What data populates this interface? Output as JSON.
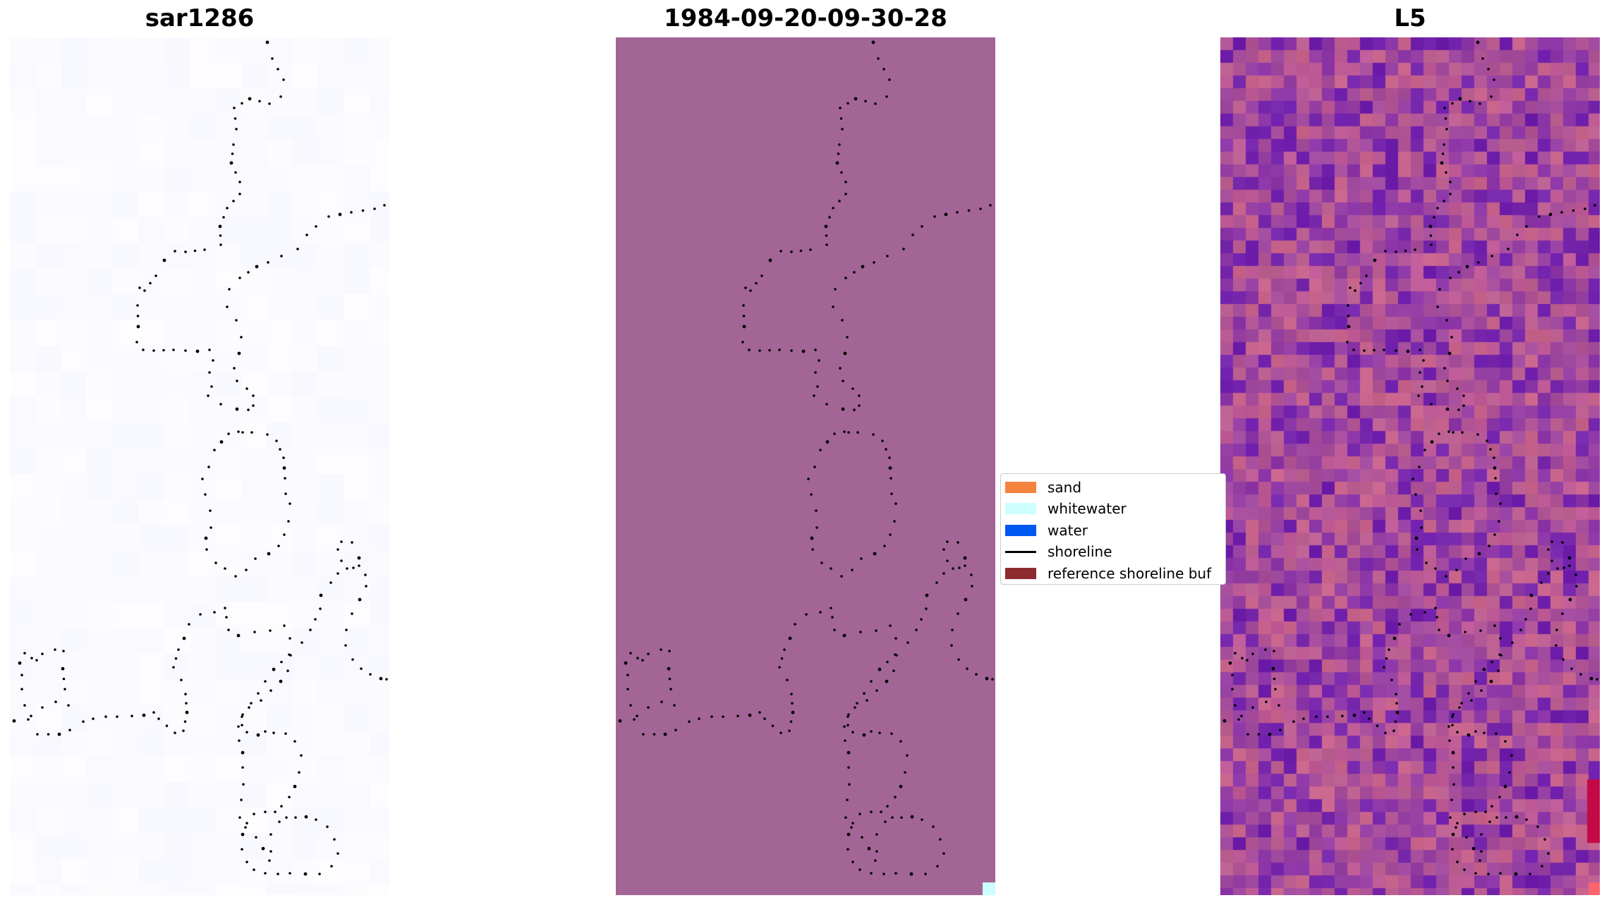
{
  "panels": [
    {
      "id": "sar",
      "title": "sar1286"
    },
    {
      "id": "classification",
      "title": "1984-09-20-09-30-28"
    },
    {
      "id": "l5",
      "title": "L5"
    }
  ],
  "legend": {
    "items": [
      {
        "label": "sand",
        "color": "#f5833e",
        "kind": "patch"
      },
      {
        "label": "whitewater",
        "color": "#ccfffd",
        "kind": "patch"
      },
      {
        "label": "water",
        "color": "#0058f0",
        "kind": "patch"
      },
      {
        "label": "shoreline",
        "color": "#000000",
        "kind": "line"
      },
      {
        "label": "reference shoreline buf",
        "color": "#8e2b30",
        "kind": "patch"
      }
    ]
  },
  "colors": {
    "sar_background": "#fbfbff",
    "classification_background": "#a26596",
    "shoreline_dots": "#000000"
  }
}
